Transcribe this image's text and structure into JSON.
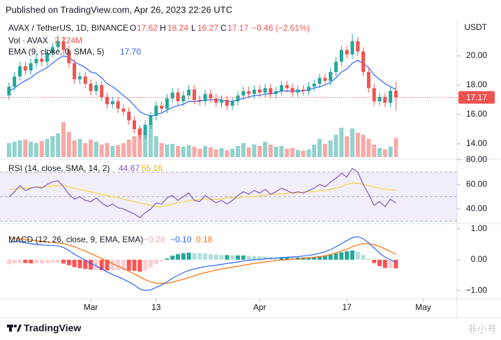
{
  "header": {
    "title": "Published on TradingView.com, Apr 26, 2023 22:26 UTC"
  },
  "footer": {
    "brand": "TradingView",
    "watermark": "非小号"
  },
  "chart_data": {
    "type": "candlestick",
    "currency": "USDT",
    "legend": {
      "symbol": "AVAX / TetherUS, 1D, BINANCE",
      "o_label": "O",
      "o": "17.62",
      "h_label": "H",
      "h": "18.24",
      "l_label": "L",
      "l": "16.27",
      "c_label": "C",
      "c": "17.17",
      "change": "−0.46 (−2.61%)",
      "vol_label": "Vol · AVAX",
      "vol": "2.724M",
      "ema_label": "EMA (9, close, 0, SMA, 5)",
      "ema": "17.70"
    },
    "up_color": "#26a69a",
    "down_color": "#ef5350",
    "ylim": [
      12.95,
      22.48
    ],
    "yticks": [
      {
        "value": 20,
        "label": "20.00"
      },
      {
        "value": 18,
        "label": "18.00"
      },
      {
        "value": 16,
        "label": "16.00"
      },
      {
        "value": 14,
        "label": "14.00"
      }
    ],
    "xticks": [
      {
        "value": 15,
        "label": "Mar"
      },
      {
        "value": 27,
        "label": "13"
      },
      {
        "value": 46,
        "label": "Apr"
      },
      {
        "value": 62,
        "label": "17"
      },
      {
        "value": 76,
        "label": "May"
      }
    ],
    "open": [
      17.3,
      17.9,
      18.6,
      19.3,
      19.0,
      19.5,
      19.8,
      19.6,
      20.2,
      20.6,
      21.0,
      20.4,
      19.5,
      18.4,
      18.6,
      18.1,
      17.6,
      18.0,
      17.2,
      16.7,
      16.9,
      16.4,
      16.2,
      15.6,
      15.0,
      14.6,
      15.3,
      15.9,
      16.6,
      16.4,
      17.1,
      17.5,
      16.9,
      17.3,
      17.7,
      17.0,
      16.9,
      17.4,
      17.1,
      16.8,
      17.0,
      16.6,
      16.9,
      17.3,
      17.6,
      17.4,
      17.7,
      17.5,
      17.8,
      17.4,
      17.6,
      18.0,
      17.8,
      17.5,
      17.7,
      17.6,
      17.9,
      18.1,
      18.5,
      18.3,
      18.9,
      19.6,
      20.4,
      20.1,
      21.0,
      20.3,
      18.9,
      17.8,
      16.9,
      17.2,
      16.8,
      17.62
    ],
    "high": [
      18.2,
      18.9,
      19.6,
      19.6,
      19.8,
      20.1,
      20.1,
      20.5,
      20.9,
      21.4,
      21.3,
      20.7,
      19.8,
      18.9,
      18.9,
      18.4,
      18.3,
      18.3,
      17.5,
      17.2,
      17.2,
      16.7,
      16.5,
      15.9,
      15.3,
      15.6,
      16.2,
      16.9,
      16.9,
      17.4,
      17.8,
      17.8,
      17.6,
      18.0,
      18.0,
      17.3,
      17.7,
      17.7,
      17.4,
      17.3,
      17.3,
      17.2,
      17.6,
      17.9,
      17.9,
      18.0,
      18.0,
      18.1,
      18.1,
      17.9,
      18.3,
      18.3,
      18.1,
      18.0,
      18.0,
      18.2,
      18.4,
      18.8,
      18.8,
      19.2,
      19.9,
      20.7,
      20.7,
      21.5,
      21.3,
      20.6,
      19.2,
      18.1,
      17.5,
      17.5,
      17.9,
      18.24
    ],
    "low": [
      17.0,
      17.6,
      18.3,
      18.7,
      18.7,
      19.2,
      19.3,
      19.3,
      19.9,
      20.3,
      20.1,
      19.2,
      18.1,
      18.1,
      17.8,
      17.3,
      17.3,
      16.9,
      16.4,
      16.4,
      16.1,
      15.9,
      15.3,
      14.7,
      14.3,
      14.3,
      15.0,
      15.6,
      16.1,
      16.1,
      16.8,
      16.6,
      16.6,
      17.0,
      16.7,
      16.6,
      16.6,
      16.8,
      16.5,
      16.5,
      16.3,
      16.3,
      16.6,
      17.0,
      17.1,
      17.1,
      17.2,
      17.2,
      17.1,
      17.1,
      17.3,
      17.5,
      17.2,
      17.2,
      17.3,
      17.3,
      17.6,
      17.8,
      18.0,
      18.0,
      18.6,
      19.3,
      19.8,
      19.8,
      20.0,
      18.6,
      17.5,
      16.6,
      16.6,
      16.5,
      16.5,
      16.27
    ],
    "close": [
      17.9,
      18.6,
      19.3,
      19.0,
      19.5,
      19.8,
      19.6,
      20.2,
      20.6,
      21.0,
      20.4,
      19.5,
      18.4,
      18.6,
      18.1,
      17.6,
      18.0,
      17.2,
      16.7,
      16.9,
      16.4,
      16.2,
      15.6,
      15.0,
      14.6,
      15.3,
      15.9,
      16.6,
      16.4,
      17.1,
      17.5,
      16.9,
      17.3,
      17.7,
      17.0,
      16.9,
      17.4,
      17.1,
      16.8,
      17.0,
      16.6,
      16.9,
      17.3,
      17.6,
      17.4,
      17.7,
      17.5,
      17.8,
      17.4,
      17.6,
      18.0,
      17.8,
      17.5,
      17.7,
      17.6,
      17.9,
      18.1,
      18.5,
      18.3,
      18.9,
      19.6,
      20.4,
      20.1,
      21.0,
      20.3,
      18.9,
      17.8,
      16.9,
      17.2,
      16.8,
      17.62,
      17.17
    ],
    "volume_ylim": [
      0,
      20
    ],
    "volume": [
      2.0,
      2.2,
      2.4,
      2.5,
      2.2,
      2.0,
      2.3,
      2.6,
      3.0,
      3.4,
      5.0,
      3.6,
      2.4,
      2.6,
      2.0,
      2.5,
      2.2,
      1.8,
      2.0,
      1.6,
      1.7,
      2.0,
      2.5,
      3.0,
      4.2,
      3.5,
      4.8,
      3.0,
      2.0,
      1.8,
      1.9,
      1.6,
      1.5,
      1.7,
      1.5,
      1.2,
      1.6,
      1.4,
      1.1,
      1.3,
      1.0,
      1.2,
      1.6,
      2.0,
      1.4,
      1.8,
      1.6,
      2.2,
      1.8,
      1.5,
      1.6,
      1.2,
      1.3,
      1.0,
      0.9,
      1.1,
      1.8,
      2.6,
      1.9,
      2.4,
      3.2,
      4.2,
      3.0,
      4.1,
      3.5,
      3.2,
      2.6,
      1.8,
      1.3,
      1.1,
      1.5,
      2.724
    ],
    "ema_color": "#2962ff",
    "ema": [
      17.6,
      17.8,
      18.1,
      18.3,
      18.5,
      18.8,
      19.0,
      19.2,
      19.5,
      19.8,
      20.0,
      19.9,
      19.6,
      19.4,
      19.2,
      18.9,
      18.8,
      18.5,
      18.1,
      17.9,
      17.6,
      17.3,
      17.0,
      16.6,
      16.2,
      16.0,
      15.9,
      16.0,
      16.1,
      16.3,
      16.5,
      16.6,
      16.7,
      16.9,
      16.9,
      16.9,
      17.0,
      17.0,
      17.0,
      17.0,
      16.9,
      16.9,
      17.0,
      17.1,
      17.2,
      17.3,
      17.3,
      17.4,
      17.4,
      17.5,
      17.6,
      17.6,
      17.6,
      17.6,
      17.6,
      17.7,
      17.8,
      17.9,
      18.0,
      18.2,
      18.5,
      18.9,
      19.1,
      19.5,
      19.7,
      19.5,
      19.2,
      18.7,
      18.4,
      18.1,
      17.9,
      17.7
    ],
    "rsi": {
      "label": "RSI (14, close, SMA, 14, 2)",
      "value_label": "44.67",
      "sma_label": "55.16",
      "ylim": [
        28.3,
        80.5
      ],
      "yticks": [
        {
          "value": 80,
          "label": "80.00"
        },
        {
          "value": 60,
          "label": "60.00"
        },
        {
          "value": 40,
          "label": "40.00"
        }
      ],
      "bands": [
        70,
        50,
        30
      ],
      "color": "#7e57c2",
      "sma_color": "#f9d33a",
      "values": [
        50,
        54,
        59,
        55,
        57,
        58,
        57,
        60,
        62,
        63,
        58,
        52,
        48,
        50,
        47,
        46,
        49,
        45,
        42,
        44,
        41,
        40,
        38,
        36,
        33,
        37,
        40,
        45,
        44,
        49,
        51,
        47,
        50,
        53,
        47,
        46,
        51,
        48,
        45,
        47,
        44,
        47,
        51,
        54,
        52,
        55,
        53,
        56,
        52,
        54,
        57,
        55,
        53,
        54,
        53,
        55,
        57,
        60,
        58,
        62,
        65,
        69,
        66,
        73,
        70,
        60,
        52,
        43,
        46,
        42,
        48,
        44.67
      ],
      "sma": [
        56,
        56,
        57,
        57,
        57,
        58,
        58,
        58,
        59,
        59,
        59,
        58,
        57,
        56,
        55,
        54,
        53,
        52,
        51,
        50,
        49,
        48,
        47,
        46,
        45,
        44,
        43,
        42,
        42,
        43,
        44,
        45,
        46,
        47,
        47,
        48,
        48,
        48,
        48,
        48,
        49,
        49,
        49,
        50,
        50,
        50,
        51,
        51,
        52,
        52,
        52,
        53,
        53,
        53,
        54,
        54,
        54,
        55,
        55,
        56,
        57,
        58,
        60,
        61,
        61,
        60,
        59,
        58,
        57,
        56,
        55.5,
        55.16
      ]
    },
    "macd": {
      "label": "MACD (12, 26, close, 9, EMA, EMA)",
      "hist_label": "−0.28",
      "macd_label": "−0.10",
      "signal_label": "0.18",
      "ylim": [
        -1.27,
        1.18
      ],
      "yticks": [
        {
          "value": 1,
          "label": "1.00"
        },
        {
          "value": 0,
          "label": "0.00"
        },
        {
          "value": -1,
          "label": "−1.00"
        }
      ],
      "macd_color": "#2962ff",
      "signal_color": "#ff6d00",
      "hist_colors": [
        "#26a69a",
        "#b2dfdb",
        "#ffcdd2",
        "#ff5252"
      ],
      "values": [
        0.57,
        0.58,
        0.58,
        0.55,
        0.52,
        0.5,
        0.48,
        0.47,
        0.46,
        0.45,
        0.4,
        0.3,
        0.18,
        0.08,
        -0.02,
        -0.12,
        -0.2,
        -0.3,
        -0.4,
        -0.48,
        -0.55,
        -0.63,
        -0.72,
        -0.82,
        -0.95,
        -1.0,
        -0.98,
        -0.9,
        -0.82,
        -0.72,
        -0.6,
        -0.5,
        -0.42,
        -0.35,
        -0.3,
        -0.26,
        -0.22,
        -0.2,
        -0.18,
        -0.15,
        -0.12,
        -0.1,
        -0.07,
        -0.04,
        -0.02,
        0.0,
        0.01,
        0.03,
        0.04,
        0.05,
        0.07,
        0.08,
        0.09,
        0.1,
        0.12,
        0.14,
        0.17,
        0.21,
        0.26,
        0.33,
        0.42,
        0.52,
        0.62,
        0.72,
        0.75,
        0.68,
        0.55,
        0.38,
        0.22,
        0.08,
        0.0,
        -0.1
      ],
      "signal": [
        0.72,
        0.7,
        0.68,
        0.66,
        0.64,
        0.62,
        0.6,
        0.58,
        0.56,
        0.54,
        0.52,
        0.48,
        0.42,
        0.35,
        0.28,
        0.2,
        0.12,
        0.04,
        -0.05,
        -0.13,
        -0.21,
        -0.29,
        -0.37,
        -0.46,
        -0.56,
        -0.65,
        -0.72,
        -0.76,
        -0.77,
        -0.76,
        -0.73,
        -0.68,
        -0.63,
        -0.58,
        -0.52,
        -0.47,
        -0.42,
        -0.38,
        -0.34,
        -0.3,
        -0.27,
        -0.24,
        -0.21,
        -0.18,
        -0.15,
        -0.12,
        -0.1,
        -0.07,
        -0.05,
        -0.03,
        -0.01,
        0.0,
        0.02,
        0.03,
        0.05,
        0.06,
        0.08,
        0.1,
        0.13,
        0.17,
        0.22,
        0.28,
        0.34,
        0.42,
        0.48,
        0.52,
        0.52,
        0.49,
        0.43,
        0.35,
        0.27,
        0.18
      ],
      "histogram": [
        -0.15,
        -0.12,
        -0.1,
        -0.11,
        -0.12,
        -0.12,
        -0.12,
        -0.11,
        -0.1,
        -0.09,
        -0.12,
        -0.18,
        -0.24,
        -0.27,
        -0.3,
        -0.32,
        -0.32,
        -0.34,
        -0.35,
        -0.35,
        -0.34,
        -0.34,
        -0.35,
        -0.36,
        -0.39,
        -0.35,
        -0.26,
        -0.14,
        -0.05,
        0.04,
        0.13,
        0.18,
        0.21,
        0.23,
        0.22,
        0.21,
        0.2,
        0.18,
        0.16,
        0.15,
        0.15,
        0.14,
        0.14,
        0.14,
        0.13,
        0.12,
        0.11,
        0.1,
        0.09,
        0.08,
        0.08,
        0.08,
        0.07,
        0.07,
        0.07,
        0.08,
        0.09,
        0.11,
        0.13,
        0.16,
        0.2,
        0.24,
        0.28,
        0.3,
        0.27,
        0.16,
        0.03,
        -0.11,
        -0.21,
        -0.27,
        -0.27,
        -0.28
      ]
    }
  }
}
